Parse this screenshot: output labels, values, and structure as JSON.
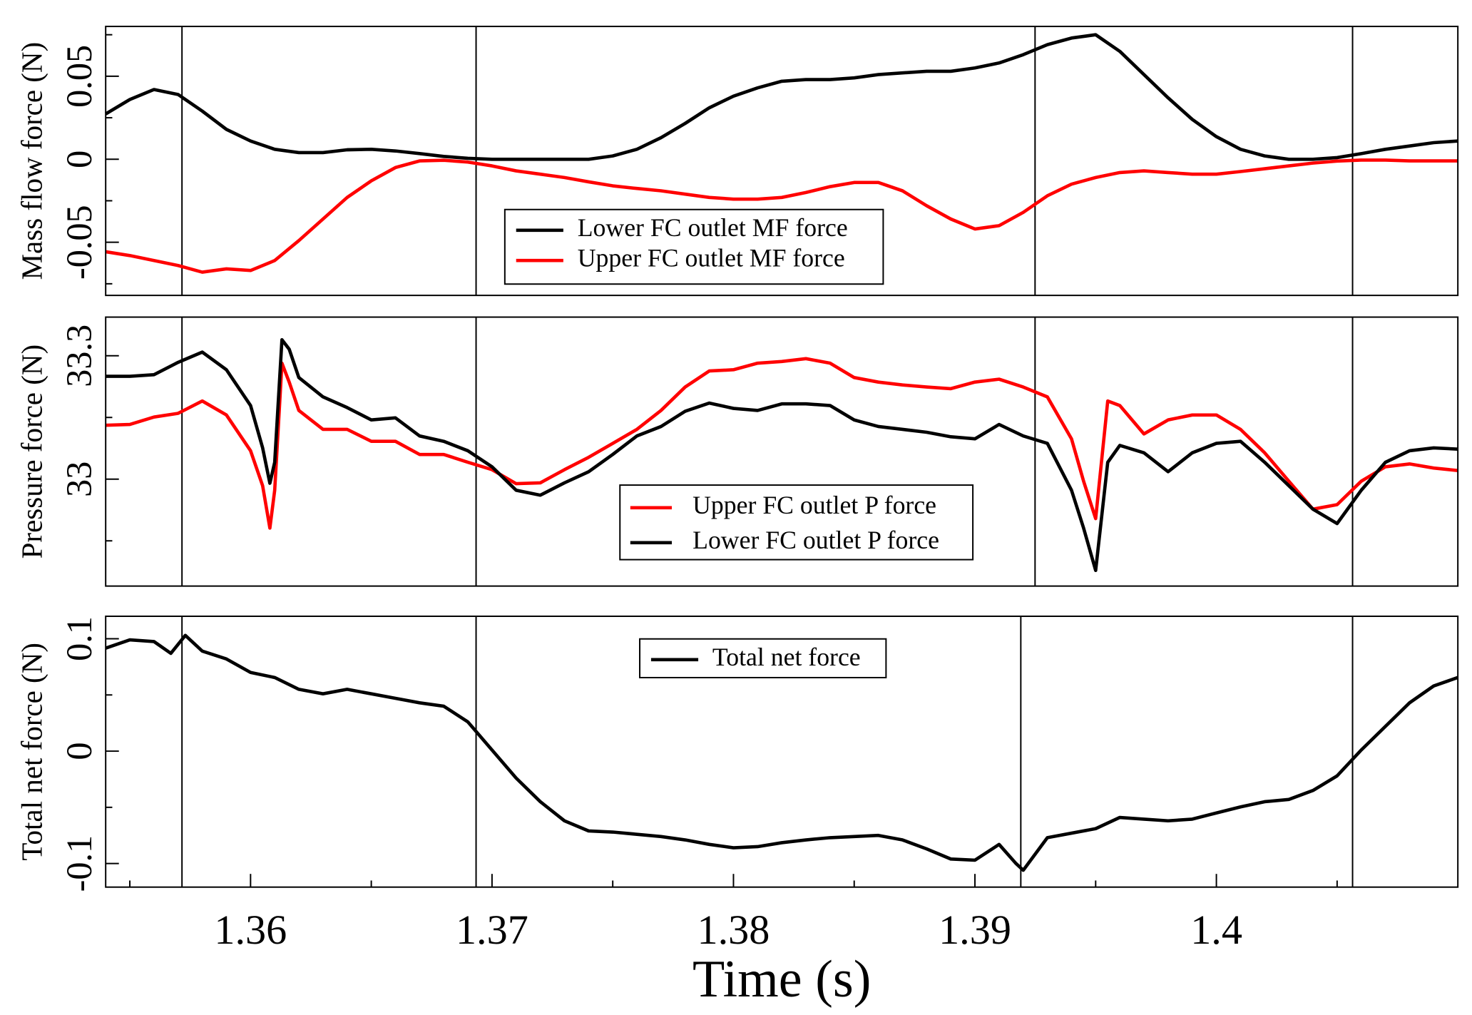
{
  "chart_data": [
    {
      "type": "line",
      "ylabel": "Mass flow force (N)",
      "xlim": [
        1.354,
        1.41
      ],
      "ylim": [
        -0.082,
        0.08
      ],
      "yticks": [
        -0.05,
        0,
        0.05
      ],
      "yminorticks": [
        -0.075,
        -0.025,
        0.025,
        0.075
      ],
      "vlines": [
        1.35716,
        1.36934,
        1.39249,
        1.40564
      ],
      "x": [
        1.354,
        1.355,
        1.356,
        1.357,
        1.358,
        1.359,
        1.36,
        1.361,
        1.362,
        1.363,
        1.364,
        1.365,
        1.366,
        1.367,
        1.368,
        1.369,
        1.37,
        1.371,
        1.372,
        1.373,
        1.374,
        1.375,
        1.376,
        1.377,
        1.378,
        1.379,
        1.38,
        1.381,
        1.382,
        1.383,
        1.384,
        1.385,
        1.386,
        1.387,
        1.388,
        1.389,
        1.39,
        1.391,
        1.392,
        1.393,
        1.394,
        1.395,
        1.396,
        1.397,
        1.398,
        1.399,
        1.4,
        1.401,
        1.402,
        1.403,
        1.404,
        1.405,
        1.406,
        1.407,
        1.408,
        1.409,
        1.41
      ],
      "series": [
        {
          "name": "Lower FC outlet MF force",
          "color": "#000000",
          "values": [
            0.0273,
            0.036,
            0.042,
            0.039,
            0.029,
            0.018,
            0.011,
            0.006,
            0.004,
            0.004,
            0.0057,
            0.006,
            0.005,
            0.0034,
            0.0017,
            0.0006,
            0,
            0,
            0,
            0,
            0,
            0.002,
            0.006,
            0.013,
            0.0216,
            0.031,
            0.038,
            0.043,
            0.047,
            0.048,
            0.048,
            0.049,
            0.051,
            0.052,
            0.053,
            0.053,
            0.055,
            0.058,
            0.063,
            0.069,
            0.073,
            0.075,
            0.065,
            0.051,
            0.037,
            0.024,
            0.0136,
            0.006,
            0.002,
            0,
            0,
            0.001,
            0.0034,
            0.006,
            0.008,
            0.01,
            0.011
          ]
        },
        {
          "name": "Upper FC outlet MF force",
          "color": "#ff0000",
          "values": [
            -0.0557,
            -0.058,
            -0.061,
            -0.064,
            -0.068,
            -0.066,
            -0.067,
            -0.061,
            -0.049,
            -0.036,
            -0.023,
            -0.013,
            -0.005,
            -0.001,
            -0.0006,
            -0.0017,
            -0.004,
            -0.007,
            -0.009,
            -0.011,
            -0.0136,
            -0.016,
            -0.0176,
            -0.019,
            -0.021,
            -0.023,
            -0.024,
            -0.024,
            -0.023,
            -0.02,
            -0.0165,
            -0.014,
            -0.014,
            -0.019,
            -0.028,
            -0.036,
            -0.042,
            -0.04,
            -0.032,
            -0.022,
            -0.015,
            -0.011,
            -0.008,
            -0.007,
            -0.008,
            -0.009,
            -0.009,
            -0.0074,
            -0.0057,
            -0.004,
            -0.0023,
            -0.0011,
            -0.0005,
            -0.0005,
            -0.001,
            -0.001,
            -0.001
          ]
        }
      ]
    },
    {
      "type": "line",
      "ylabel": "Pressure force (N)",
      "xlim": [
        1.354,
        1.41
      ],
      "ylim": [
        32.74,
        33.394
      ],
      "yticks": [
        33,
        33.3
      ],
      "yminorticks": [
        32.85,
        33.15
      ],
      "vlines": [
        1.35716,
        1.36934,
        1.39249,
        1.40564
      ],
      "x": [
        1.354,
        1.355,
        1.356,
        1.357,
        1.358,
        1.359,
        1.36,
        1.3605,
        1.3608,
        1.361,
        1.3613,
        1.3616,
        1.362,
        1.363,
        1.364,
        1.365,
        1.366,
        1.367,
        1.368,
        1.369,
        1.37,
        1.371,
        1.372,
        1.373,
        1.374,
        1.375,
        1.376,
        1.377,
        1.378,
        1.379,
        1.38,
        1.381,
        1.382,
        1.383,
        1.384,
        1.385,
        1.386,
        1.387,
        1.388,
        1.389,
        1.39,
        1.391,
        1.392,
        1.393,
        1.394,
        1.3945,
        1.395,
        1.3955,
        1.396,
        1.397,
        1.398,
        1.399,
        1.4,
        1.401,
        1.402,
        1.403,
        1.404,
        1.405,
        1.406,
        1.407,
        1.408,
        1.409,
        1.41
      ],
      "series": [
        {
          "name": "Upper FC outlet P force",
          "color": "#ff0000",
          "values": [
            33.131,
            33.133,
            33.151,
            33.16,
            33.19,
            33.156,
            33.069,
            32.984,
            32.881,
            32.973,
            33.282,
            33.236,
            33.167,
            33.121,
            33.121,
            33.092,
            33.092,
            33.06,
            33.06,
            33.041,
            33.023,
            32.989,
            32.991,
            33.023,
            33.053,
            33.087,
            33.121,
            33.167,
            33.224,
            33.263,
            33.266,
            33.282,
            33.286,
            33.293,
            33.282,
            33.247,
            33.236,
            33.229,
            33.224,
            33.22,
            33.236,
            33.243,
            33.224,
            33.2,
            33.098,
            32.995,
            32.904,
            33.19,
            33.179,
            33.11,
            33.144,
            33.156,
            33.156,
            33.121,
            33.064,
            32.995,
            32.927,
            32.938,
            32.995,
            33.03,
            33.037,
            33.027,
            33.021
          ]
        },
        {
          "name": "Lower FC outlet P force",
          "color": "#000000",
          "values": [
            33.25,
            33.25,
            33.254,
            33.284,
            33.309,
            33.266,
            33.179,
            33.076,
            32.99,
            33.041,
            33.339,
            33.316,
            33.247,
            33.2,
            33.174,
            33.144,
            33.149,
            33.105,
            33.092,
            33.069,
            33.03,
            32.973,
            32.961,
            32.991,
            33.018,
            33.06,
            33.105,
            33.128,
            33.165,
            33.185,
            33.172,
            33.167,
            33.183,
            33.183,
            33.179,
            33.144,
            33.128,
            33.121,
            33.114,
            33.103,
            33.098,
            33.133,
            33.105,
            33.087,
            32.973,
            32.881,
            32.778,
            33.041,
            33.082,
            33.064,
            33.018,
            33.064,
            33.087,
            33.092,
            33.041,
            32.984,
            32.927,
            32.892,
            32.973,
            33.041,
            33.069,
            33.076,
            33.073
          ]
        }
      ]
    },
    {
      "type": "line",
      "ylabel": "Total net force (N)",
      "xlabel": "Time (s)",
      "xlim": [
        1.354,
        1.41
      ],
      "ylim": [
        -0.121,
        0.12
      ],
      "yticks": [
        -0.1,
        0,
        0.1
      ],
      "yminorticks": [
        -0.05,
        0.05
      ],
      "xticks": [
        1.36,
        1.37,
        1.38,
        1.39,
        1.4
      ],
      "xminorticks": [
        1.355,
        1.365,
        1.375,
        1.385,
        1.395,
        1.405
      ],
      "vlines": [
        1.35716,
        1.36934,
        1.3919,
        1.40564
      ],
      "x": [
        1.354,
        1.355,
        1.356,
        1.3567,
        1.3573,
        1.358,
        1.359,
        1.36,
        1.361,
        1.362,
        1.363,
        1.364,
        1.365,
        1.366,
        1.367,
        1.368,
        1.369,
        1.37,
        1.371,
        1.372,
        1.373,
        1.374,
        1.375,
        1.376,
        1.377,
        1.378,
        1.379,
        1.38,
        1.381,
        1.382,
        1.383,
        1.384,
        1.385,
        1.386,
        1.387,
        1.388,
        1.389,
        1.39,
        1.391,
        1.3917,
        1.392,
        1.393,
        1.394,
        1.395,
        1.396,
        1.397,
        1.398,
        1.399,
        1.4,
        1.401,
        1.402,
        1.403,
        1.404,
        1.405,
        1.406,
        1.407,
        1.408,
        1.409,
        1.41
      ],
      "series": [
        {
          "name": "Total net force",
          "color": "#000000",
          "values": [
            0.0916,
            0.099,
            0.0975,
            0.087,
            0.103,
            0.089,
            0.082,
            0.07,
            0.0655,
            0.055,
            0.051,
            0.055,
            0.051,
            0.047,
            0.043,
            0.04,
            0.026,
            0.001,
            -0.024,
            -0.045,
            -0.062,
            -0.071,
            -0.072,
            -0.074,
            -0.076,
            -0.079,
            -0.083,
            -0.086,
            -0.085,
            -0.0815,
            -0.079,
            -0.077,
            -0.076,
            -0.075,
            -0.079,
            -0.087,
            -0.096,
            -0.097,
            -0.083,
            -0.1,
            -0.106,
            -0.077,
            -0.073,
            -0.069,
            -0.059,
            -0.0605,
            -0.062,
            -0.0605,
            -0.055,
            -0.0496,
            -0.045,
            -0.043,
            -0.035,
            -0.022,
            0.001,
            0.022,
            0.043,
            0.058,
            0.0655
          ]
        }
      ]
    }
  ]
}
